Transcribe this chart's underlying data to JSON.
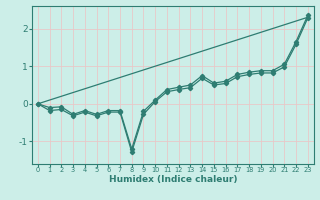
{
  "xlabel": "Humidex (Indice chaleur)",
  "bg_color": "#cceee8",
  "grid_color": "#dddddd",
  "line_color": "#2e7d72",
  "xlim": [
    -0.5,
    23.5
  ],
  "ylim": [
    -1.6,
    2.6
  ],
  "xticks": [
    0,
    1,
    2,
    3,
    4,
    5,
    6,
    7,
    8,
    9,
    10,
    11,
    12,
    13,
    14,
    15,
    16,
    17,
    18,
    19,
    20,
    21,
    22,
    23
  ],
  "yticks": [
    -1,
    0,
    1,
    2
  ],
  "line_main_x": [
    0,
    1,
    2,
    3,
    4,
    5,
    6,
    7,
    8,
    9,
    10,
    11,
    12,
    13,
    14,
    15,
    16,
    17,
    18,
    19,
    20,
    21,
    22,
    23
  ],
  "line_main_y": [
    0.0,
    -0.18,
    -0.15,
    -0.32,
    -0.22,
    -0.32,
    -0.22,
    -0.22,
    -1.28,
    -0.28,
    0.06,
    0.32,
    0.38,
    0.43,
    0.68,
    0.5,
    0.54,
    0.72,
    0.78,
    0.82,
    0.82,
    0.98,
    1.58,
    2.28
  ],
  "line2_x": [
    0,
    1,
    2,
    3,
    4,
    5,
    6,
    7,
    8,
    9,
    10,
    11,
    12,
    13,
    14,
    15,
    16,
    17,
    18,
    19,
    20,
    21,
    22,
    23
  ],
  "line2_y": [
    0.0,
    -0.1,
    -0.08,
    -0.28,
    -0.18,
    -0.28,
    -0.18,
    -0.18,
    -1.2,
    -0.2,
    0.1,
    0.38,
    0.44,
    0.5,
    0.75,
    0.55,
    0.6,
    0.78,
    0.84,
    0.88,
    0.88,
    1.05,
    1.65,
    2.35
  ],
  "trend_x": [
    0,
    23
  ],
  "trend_y": [
    0.0,
    2.3
  ],
  "marker": "D",
  "marker_size": 2.2
}
